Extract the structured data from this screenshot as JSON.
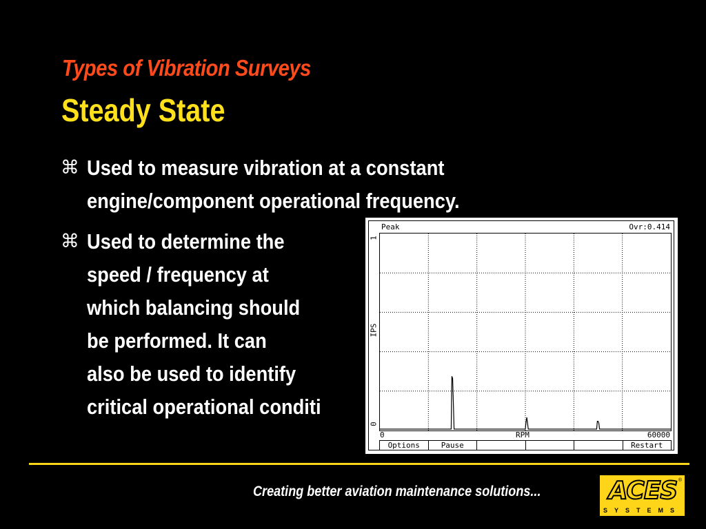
{
  "slide": {
    "subtitle": "Types of Vibration Surveys",
    "title": "Steady State",
    "bullet_symbol": "⌘",
    "bullets": [
      {
        "lines": [
          "Used to measure vibration at a constant",
          "engine/component operational frequency."
        ]
      },
      {
        "lines": [
          "Used to determine the",
          "speed / frequency at",
          "which balancing should",
          "be performed. It can",
          "also be used to identify",
          "critical operational conditi"
        ]
      }
    ]
  },
  "screen": {
    "mode_label": "Peak",
    "overall_readout": "Ovr:0.414",
    "y_axis_label": "IPS",
    "y_max_label": "1",
    "y_min_label": "0",
    "x_axis_label": "RPM",
    "x_min_label": "0",
    "x_max_label": "60000",
    "buttons": [
      "Options",
      "Pause",
      "",
      "",
      "",
      "Restart"
    ]
  },
  "chart_data": {
    "type": "line",
    "title": "Peak",
    "xlabel": "RPM",
    "ylabel": "IPS",
    "xlim": [
      0,
      60000
    ],
    "ylim": [
      0,
      1
    ],
    "grid": true,
    "series": [
      {
        "x": [
          0,
          14700,
          14850,
          15000,
          15150,
          15300,
          30000,
          30150,
          30300,
          30450,
          30600,
          44700,
          44850,
          45000,
          45150,
          45300,
          60000
        ],
        "values": [
          0,
          0,
          0.27,
          0.26,
          0.13,
          0,
          0,
          0.04,
          0.06,
          0.03,
          0,
          0,
          0.04,
          0.04,
          0.03,
          0,
          0
        ]
      }
    ]
  },
  "footer": {
    "tagline": "Creating better aviation maintenance solutions...",
    "logo_text": "ACES",
    "logo_registered": "®",
    "logo_sub": "SYSTEMS"
  },
  "colors": {
    "subtitle": "#ff4a1c",
    "title": "#ffe01a",
    "accent": "#ffd51a",
    "background": "#000000"
  }
}
